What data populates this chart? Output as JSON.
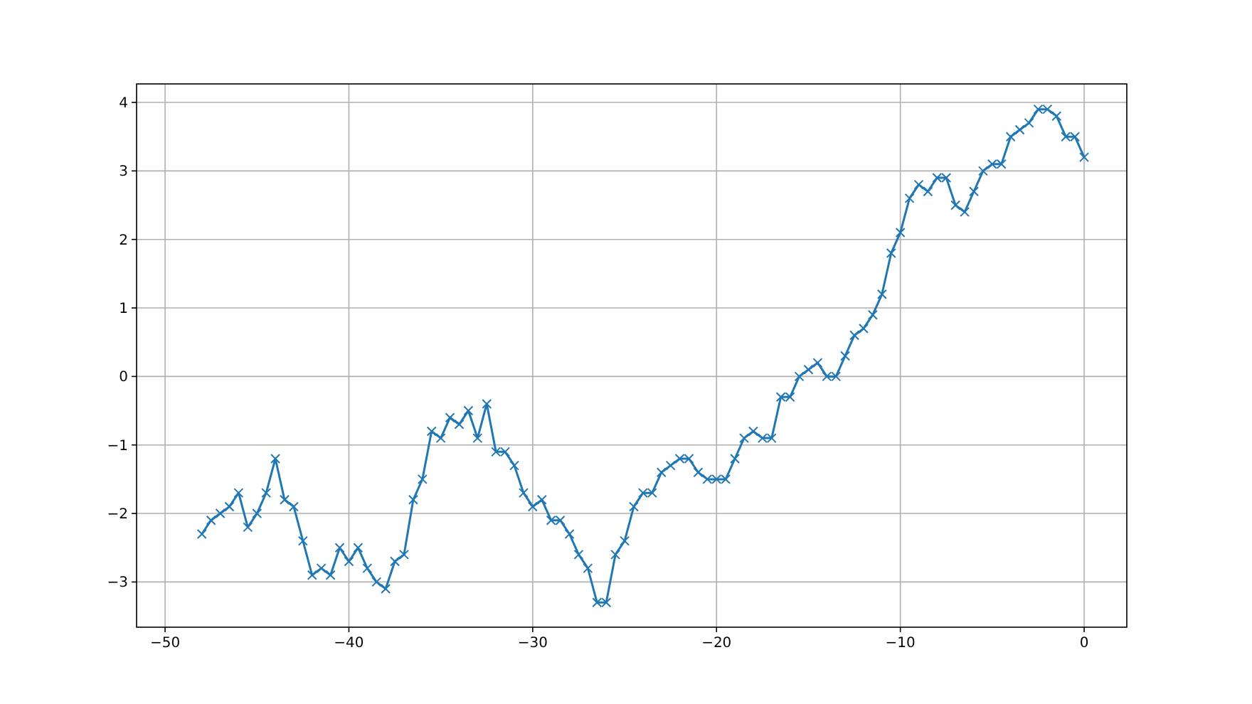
{
  "chart_data": {
    "type": "line",
    "marker": "cross",
    "grid": true,
    "line_style": "solid",
    "xlim": [
      -51.55,
      2.32
    ],
    "ylim": [
      -3.66,
      4.27
    ],
    "xticks": [
      -50,
      -40,
      -30,
      -20,
      -10,
      0
    ],
    "yticks": [
      -3,
      -2,
      -1,
      0,
      1,
      2,
      3,
      4
    ],
    "series": [
      {
        "color": "#1f77b4",
        "x": [
          -48,
          -47.5,
          -47,
          -46.5,
          -46,
          -45.5,
          -45,
          -44.5,
          -44,
          -43.5,
          -43,
          -42.5,
          -42,
          -41.5,
          -41,
          -40.5,
          -40,
          -39.5,
          -39,
          -38.5,
          -38,
          -37.5,
          -37,
          -36.5,
          -36,
          -35.5,
          -35,
          -34.5,
          -34,
          -33.5,
          -33,
          -32.5,
          -32,
          -31.5,
          -31,
          -30.5,
          -30,
          -29.5,
          -29,
          -28.5,
          -28,
          -27.5,
          -27,
          -26.5,
          -26,
          -25.5,
          -25,
          -24.5,
          -24,
          -23.5,
          -23,
          -22.5,
          -22,
          -21.5,
          -21,
          -20.5,
          -20,
          -19.5,
          -19,
          -18.5,
          -18,
          -17.5,
          -17,
          -16.5,
          -16,
          -15.5,
          -15,
          -14.5,
          -14,
          -13.5,
          -13,
          -12.5,
          -12,
          -11.5,
          -11,
          -10.5,
          -10,
          -9.5,
          -9,
          -8.5,
          -8,
          -7.5,
          -7,
          -6.5,
          -6,
          -5.5,
          -5,
          -4.5,
          -4,
          -3.5,
          -3,
          -2.5,
          -2,
          -1.5,
          -1,
          -0.5,
          0
        ],
        "values": [
          -2.3,
          -2.1,
          -2.0,
          -1.9,
          -1.7,
          -2.2,
          -2.0,
          -1.7,
          -1.2,
          -1.8,
          -1.9,
          -2.4,
          -2.9,
          -2.8,
          -2.9,
          -2.5,
          -2.7,
          -2.5,
          -2.8,
          -3.0,
          -3.1,
          -2.7,
          -2.6,
          -1.8,
          -1.5,
          -0.8,
          -0.9,
          -0.6,
          -0.7,
          -0.5,
          -0.9,
          -0.4,
          -1.1,
          -1.1,
          -1.3,
          -1.7,
          -1.9,
          -1.8,
          -2.1,
          -2.1,
          -2.3,
          -2.6,
          -2.8,
          -3.3,
          -3.3,
          -2.6,
          -2.4,
          -1.9,
          -1.7,
          -1.7,
          -1.4,
          -1.3,
          -1.2,
          -1.2,
          -1.4,
          -1.5,
          -1.5,
          -1.5,
          -1.2,
          -0.9,
          -0.8,
          -0.9,
          -0.9,
          -0.3,
          -0.3,
          0.0,
          0.1,
          0.2,
          0.0,
          0.0,
          0.3,
          0.6,
          0.7,
          0.9,
          1.2,
          1.8,
          2.1,
          2.6,
          2.8,
          2.7,
          2.9,
          2.9,
          2.5,
          2.4,
          2.7,
          3.0,
          3.1,
          3.1,
          3.5,
          3.6,
          3.7,
          3.9,
          3.9,
          3.8,
          3.5,
          3.5,
          3.2
        ]
      }
    ]
  }
}
